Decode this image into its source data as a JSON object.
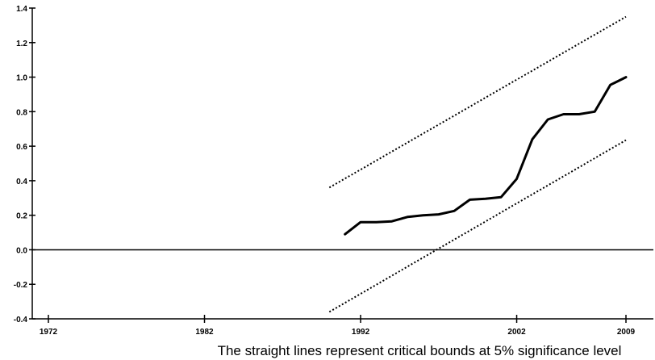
{
  "chart_data": {
    "type": "line",
    "title": "",
    "xlabel": "",
    "ylabel": "",
    "caption": "The straight lines represent critical bounds at 5% significance level",
    "xlim": [
      1972,
      2009
    ],
    "ylim": [
      -0.4,
      1.4
    ],
    "x_ticks": [
      1972,
      1982,
      1992,
      2002,
      2009
    ],
    "y_ticks": [
      -0.4,
      -0.2,
      0.0,
      0.2,
      0.4,
      0.6,
      0.8,
      1.0,
      1.2,
      1.4
    ],
    "y_tick_labels": [
      "-0.4",
      "-0.2",
      "0.0",
      "0.2",
      "0.4",
      "0.6",
      "0.8",
      "1.0",
      "1.2",
      "1.4"
    ],
    "zero_line": true,
    "grid": false,
    "legend": "none",
    "series": [
      {
        "style": "solid",
        "color": "#000000",
        "x": [
          1991,
          1992,
          1993,
          1994,
          1995,
          1996,
          1997,
          1998,
          1999,
          2000,
          2001,
          2002,
          2003,
          2004,
          2005,
          2006,
          2007,
          2008,
          2009
        ],
        "y": [
          0.09,
          0.16,
          0.16,
          0.165,
          0.19,
          0.2,
          0.205,
          0.225,
          0.29,
          0.295,
          0.305,
          0.41,
          0.64,
          0.755,
          0.785,
          0.785,
          0.8,
          0.955,
          1.0
        ]
      },
      {
        "style": "dotted",
        "color": "#000000",
        "x": [
          1990,
          2009
        ],
        "y": [
          0.36,
          1.35
        ]
      },
      {
        "style": "dotted",
        "color": "#000000",
        "x": [
          1990,
          2009
        ],
        "y": [
          -0.36,
          0.635
        ]
      }
    ]
  }
}
